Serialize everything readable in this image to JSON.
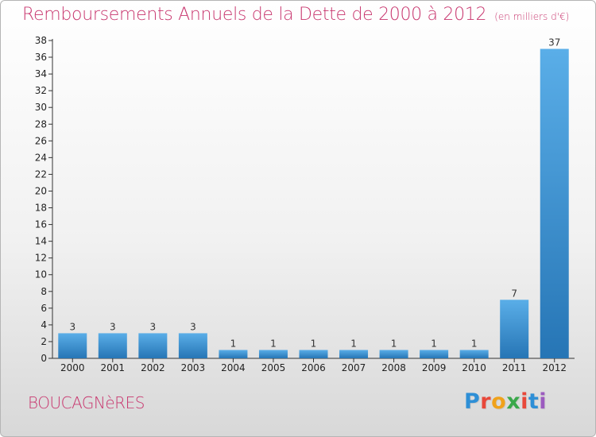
{
  "header": {
    "title": "Remboursements Annuels de la Dette de 2000 à 2012",
    "subtitle": "(en milliers d'€)"
  },
  "town": "BOUCAGNèRES",
  "brand": {
    "letters": [
      "P",
      "r",
      "o",
      "x",
      "i",
      "t",
      "i"
    ],
    "colors": [
      "#2e8fd6",
      "#e8483a",
      "#f0a21b",
      "#3aa84b",
      "#e8483a",
      "#2e8fd6",
      "#9c5bbf"
    ]
  },
  "colors": {
    "title": "#c8366e",
    "bar_light": "#5aaee8",
    "bar_dark": "#2675b5"
  },
  "chart_data": {
    "type": "bar",
    "title": "Remboursements Annuels de la Dette de 2000 à 2012",
    "subtitle": "(en milliers d'€)",
    "categories": [
      "2000",
      "2001",
      "2002",
      "2003",
      "2004",
      "2005",
      "2006",
      "2007",
      "2008",
      "2009",
      "2010",
      "2011",
      "2012"
    ],
    "values": [
      3,
      3,
      3,
      3,
      1,
      1,
      1,
      1,
      1,
      1,
      1,
      7,
      37
    ],
    "ylim": [
      0,
      38
    ],
    "yticks": [
      0,
      2,
      4,
      6,
      8,
      10,
      12,
      14,
      16,
      18,
      20,
      22,
      24,
      26,
      28,
      30,
      32,
      34,
      36,
      38
    ],
    "grid": false,
    "xlabel": "",
    "ylabel": ""
  }
}
